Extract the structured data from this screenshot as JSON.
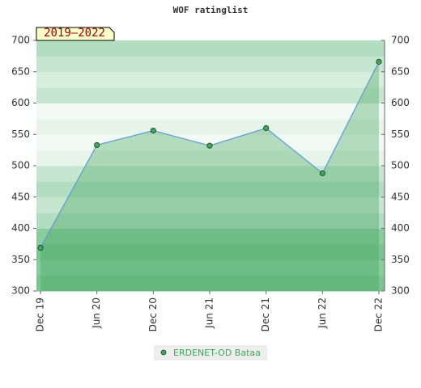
{
  "chart_data": {
    "type": "line",
    "title": "WOF ratinglist",
    "badge": "2019–2022",
    "categories": [
      "Dec 19",
      "Jun 20",
      "Dec 20",
      "Jun 21",
      "Dec 21",
      "Jun 22",
      "Dec 22"
    ],
    "series": [
      {
        "name": "ERDENET-OD Bataa",
        "color": "#5b9bd5",
        "marker_color": "#3fa55a",
        "values": [
          369,
          533,
          556,
          532,
          560,
          488,
          666
        ]
      }
    ],
    "ylim": [
      300,
      700
    ],
    "yticks": [
      300,
      350,
      400,
      450,
      500,
      550,
      600,
      650,
      700
    ],
    "y2lim": [
      300,
      700
    ],
    "y2ticks": [
      300,
      350,
      400,
      450,
      500,
      550,
      600,
      650,
      700
    ]
  }
}
